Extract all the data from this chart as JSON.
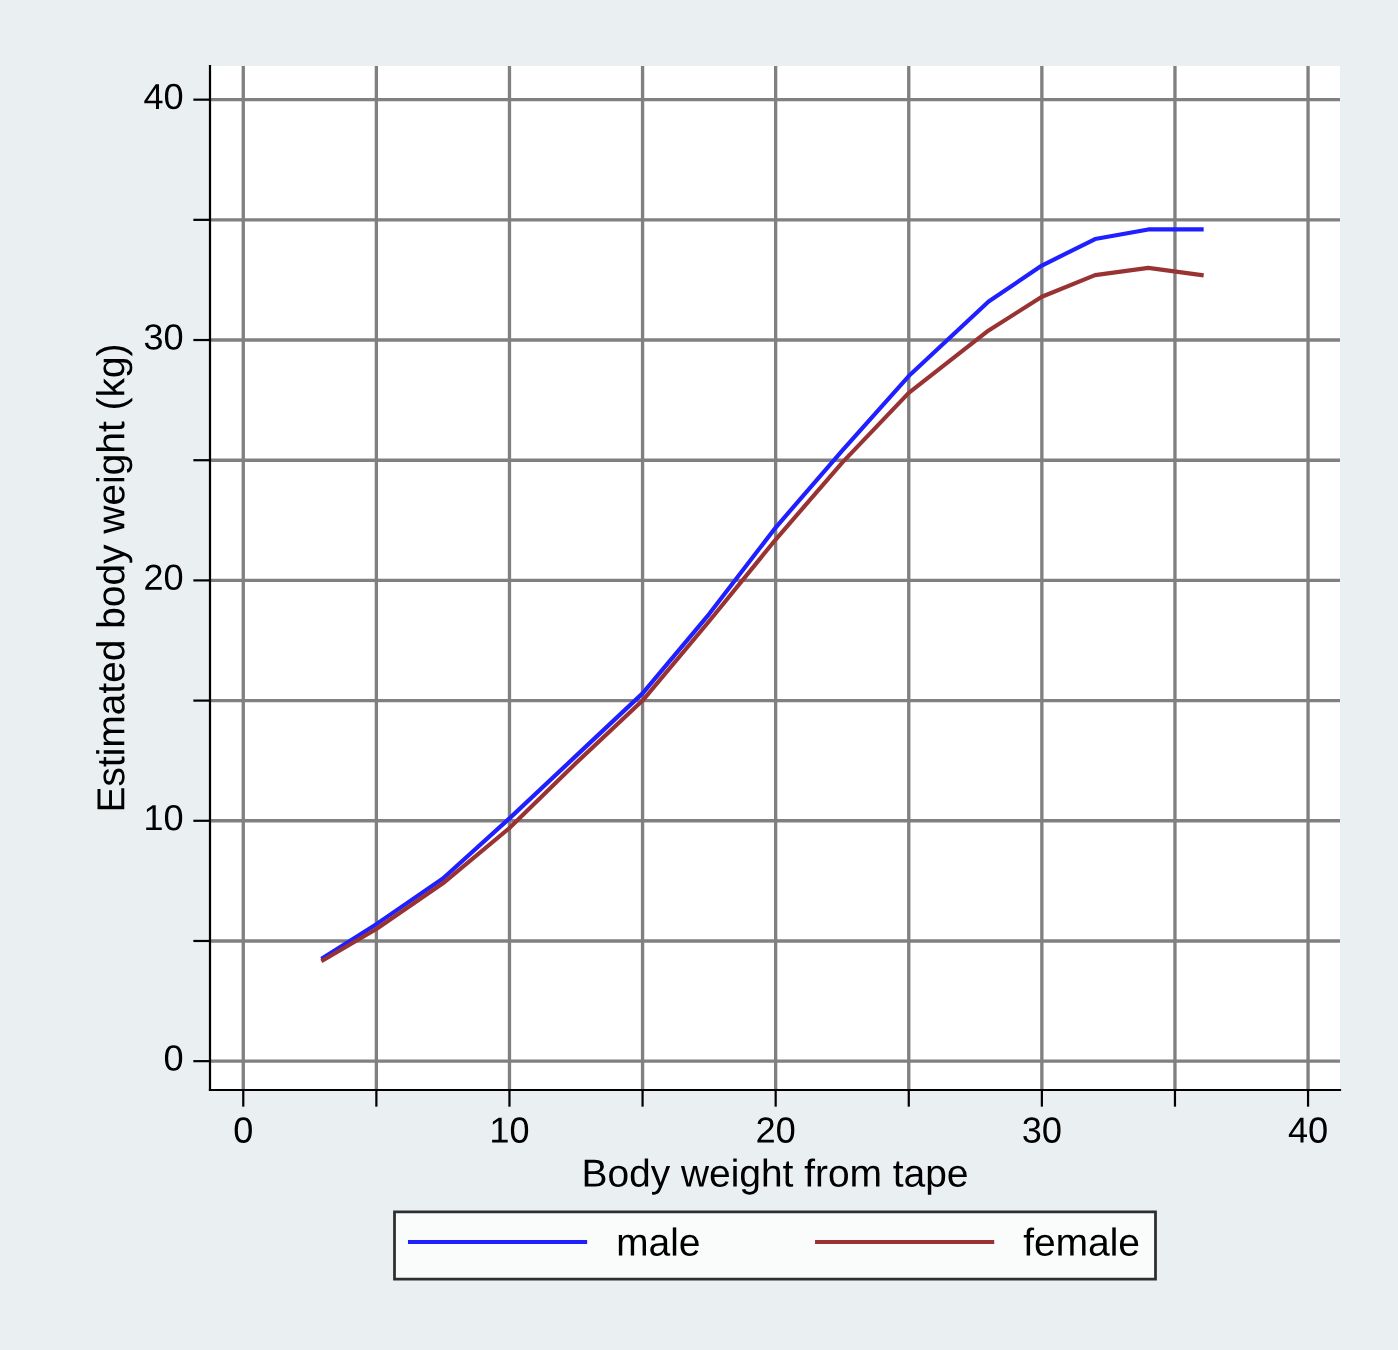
{
  "chart_data": {
    "type": "line",
    "xlabel": "Body weight from tape",
    "ylabel": "Estimated body weight (kg)",
    "xlim": [
      -1.25,
      41.2
    ],
    "ylim": [
      -1.2,
      41.4
    ],
    "xticks": [
      0,
      {
        "value": 5,
        "label": null
      },
      10,
      {
        "value": 15,
        "label": null
      },
      20,
      {
        "value": 25,
        "label": null
      },
      30,
      {
        "value": 35,
        "label": null
      },
      40
    ],
    "yticks": [
      0,
      {
        "value": 5,
        "label": null
      },
      10,
      {
        "value": 15,
        "label": null
      },
      20,
      {
        "value": 25,
        "label": null
      },
      30,
      {
        "value": 35,
        "label": null
      },
      40
    ],
    "grid": true,
    "legend": "bottom",
    "line_style": "solid",
    "series": [
      {
        "name": "male",
        "color": "#1f1fff",
        "x": [
          3,
          5,
          7.5,
          10,
          12.5,
          15,
          17.5,
          20,
          22.5,
          25,
          28,
          30,
          32,
          34,
          36
        ],
        "values": [
          4.3,
          5.7,
          7.6,
          10.1,
          12.7,
          15.3,
          18.6,
          22.2,
          25.4,
          28.5,
          31.6,
          33.1,
          34.2,
          34.6,
          34.6
        ]
      },
      {
        "name": "female",
        "color": "#993333",
        "x": [
          3,
          5,
          7.5,
          10,
          12.5,
          15,
          17.5,
          20,
          22.5,
          25,
          28,
          30,
          32,
          34,
          36
        ],
        "values": [
          4.2,
          5.5,
          7.4,
          9.7,
          12.4,
          15.0,
          18.3,
          21.7,
          24.9,
          27.8,
          30.4,
          31.8,
          32.7,
          33.0,
          32.7
        ]
      }
    ]
  }
}
